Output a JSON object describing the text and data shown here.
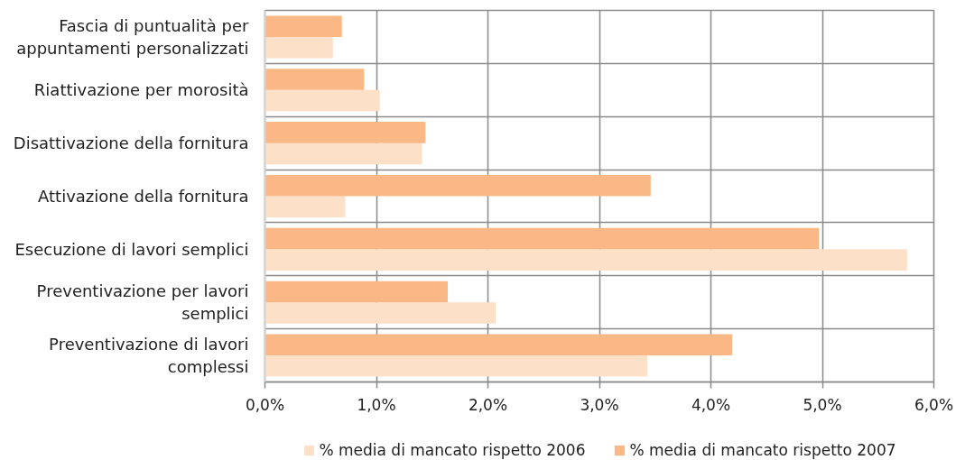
{
  "chart_data": {
    "type": "bar",
    "orientation": "horizontal",
    "categories": [
      "Fascia di puntualità per appuntamenti personalizzati",
      "Riattivazione per morosità",
      "Disattivazione della fornitura",
      "Attivazione della fornitura",
      "Esecuzione di lavori semplici",
      "Preventivazione per lavori semplici",
      "Preventivazione di lavori complessi"
    ],
    "series": [
      {
        "name": "% media di mancato rispetto 2006",
        "color": "#fde0c8",
        "values": [
          0.61,
          1.03,
          1.41,
          0.72,
          5.76,
          2.07,
          3.43
        ]
      },
      {
        "name": "% media di mancato rispetto 2007",
        "color": "#f9b885",
        "values": [
          0.69,
          0.89,
          1.44,
          3.46,
          4.97,
          1.64,
          4.19
        ]
      }
    ],
    "xlim": [
      0,
      6
    ],
    "xticks": [
      {
        "value": 0,
        "label": "0,0%"
      },
      {
        "value": 1,
        "label": "1,0%"
      },
      {
        "value": 2,
        "label": "2,0%"
      },
      {
        "value": 3,
        "label": "3,0%"
      },
      {
        "value": 4,
        "label": "4,0%"
      },
      {
        "value": 5,
        "label": "5,0%"
      },
      {
        "value": 6,
        "label": "6,0%"
      }
    ],
    "grid": true,
    "legend": "bottom"
  }
}
